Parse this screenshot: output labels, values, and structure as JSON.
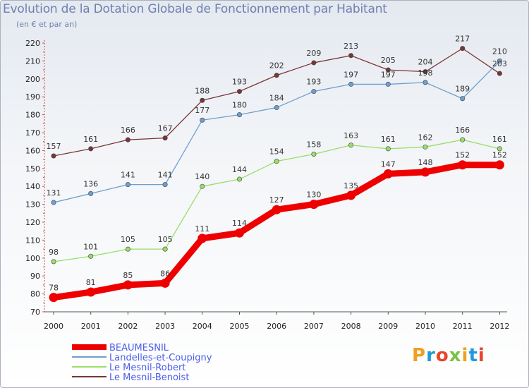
{
  "header": {
    "title": "Evolution de la Dotation Globale de Fonctionnement par Habitant",
    "subtitle": "(en € et par an)"
  },
  "brand": {
    "letters": [
      "P",
      "r",
      "o",
      "x",
      "i",
      "t",
      "i"
    ],
    "colors": [
      "#f0a020",
      "#1f9ad8",
      "#e8452c",
      "#7ac142",
      "#f0a020",
      "#1f9ad8",
      "#e8452c"
    ]
  },
  "chart_data": {
    "type": "line",
    "title": "Evolution de la Dotation Globale de Fonctionnement par Habitant",
    "subtitle": "(en € et par an)",
    "xlabel": "",
    "ylabel": "",
    "ylim": [
      70,
      220
    ],
    "ytick_step": 10,
    "grid": false,
    "legend_position": "bottom-left",
    "categories": [
      "2000",
      "2001",
      "2002",
      "2003",
      "2004",
      "2005",
      "2006",
      "2007",
      "2008",
      "2009",
      "2010",
      "2011",
      "2012"
    ],
    "series": [
      {
        "name": "BEAUMESNIL",
        "color": "#ee0000",
        "values": [
          78,
          81,
          85,
          86,
          111,
          114,
          127,
          130,
          135,
          147,
          148,
          152,
          152
        ]
      },
      {
        "name": "Landelles-et-Coupigny",
        "color": "#6f9fcf",
        "values": [
          131,
          136,
          141,
          141,
          177,
          180,
          184,
          193,
          197,
          197,
          198,
          189,
          210
        ]
      },
      {
        "name": "Le Mesnil-Robert",
        "color": "#99dd66",
        "values": [
          98,
          101,
          105,
          105,
          140,
          144,
          154,
          158,
          163,
          161,
          162,
          166,
          161
        ]
      },
      {
        "name": "Le Mesnil-Benoist",
        "color": "#7a3535",
        "values": [
          157,
          161,
          166,
          167,
          188,
          193,
          202,
          209,
          213,
          205,
          204,
          217,
          203
        ]
      }
    ]
  }
}
